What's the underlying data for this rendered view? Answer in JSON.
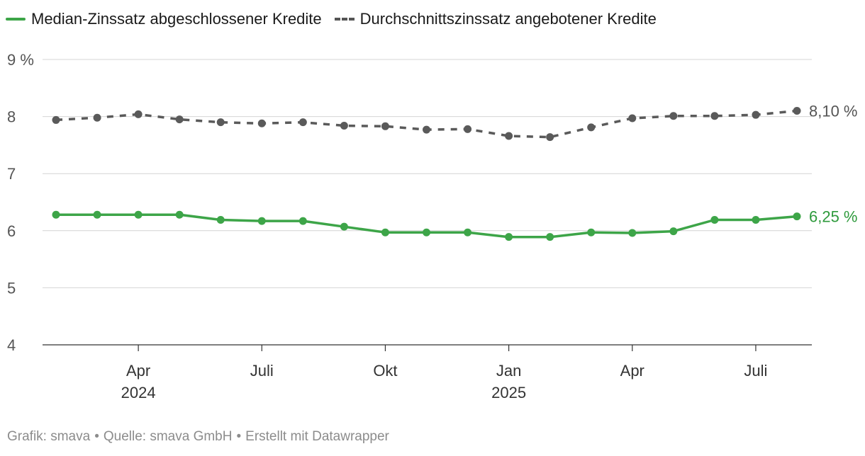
{
  "chart_data": {
    "type": "line",
    "x": [
      "2024-02",
      "2024-03",
      "2024-04",
      "2024-05",
      "2024-06",
      "2024-07",
      "2024-08",
      "2024-09",
      "2024-10",
      "2024-11",
      "2024-12",
      "2025-01",
      "2025-02",
      "2025-03",
      "2025-04",
      "2025-05",
      "2025-06",
      "2025-07",
      "2025-08"
    ],
    "series": [
      {
        "name": "Median-Zinssatz abgeschlossener Kredite",
        "color": "#3da548",
        "style": "solid",
        "values": [
          6.28,
          6.28,
          6.28,
          6.28,
          6.19,
          6.17,
          6.17,
          6.07,
          5.97,
          5.97,
          5.97,
          5.89,
          5.89,
          5.97,
          5.96,
          5.99,
          6.19,
          6.19,
          6.25
        ],
        "end_label": "6,25 %"
      },
      {
        "name": "Durchschnittszinssatz angebotener Kredite",
        "color": "#5a5a5a",
        "style": "dashed",
        "values": [
          7.94,
          7.98,
          8.04,
          7.95,
          7.9,
          7.88,
          7.9,
          7.84,
          7.83,
          7.77,
          7.78,
          7.66,
          7.64,
          7.81,
          7.97,
          8.01,
          8.01,
          8.03,
          8.1
        ],
        "end_label": "8,10 %"
      }
    ],
    "ylim": [
      4,
      9
    ],
    "yticks": [
      "9 %",
      "8",
      "7",
      "6",
      "5",
      "4"
    ],
    "xticks": [
      {
        "label": "Apr",
        "sub": "2024",
        "at": "2024-04"
      },
      {
        "label": "Juli",
        "sub": "",
        "at": "2024-07"
      },
      {
        "label": "Okt",
        "sub": "",
        "at": "2024-10"
      },
      {
        "label": "Jan",
        "sub": "2025",
        "at": "2025-01"
      },
      {
        "label": "Apr",
        "sub": "",
        "at": "2025-04"
      },
      {
        "label": "Juli",
        "sub": "",
        "at": "2025-07"
      }
    ],
    "title": "",
    "xlabel": "",
    "ylabel": "",
    "grid": true,
    "legend_position": "top-left"
  },
  "footer": {
    "grafik": "Grafik: smava",
    "quelle": "Quelle: smava GmbH",
    "erstellt": "Erstellt mit Datawrapper",
    "separator": "•"
  }
}
